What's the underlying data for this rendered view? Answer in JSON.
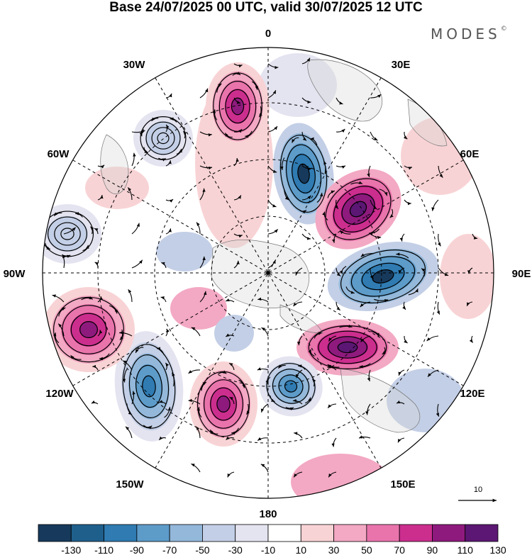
{
  "title": "Base 24/07/2025 00 UTC, valid 30/07/2025 12 UTC",
  "brand": "MODES",
  "brand_mark": "©",
  "longitude_labels": {
    "lon_0": "0",
    "lon_30e": "30E",
    "lon_60e": "60E",
    "lon_90e": "90E",
    "lon_120e": "120E",
    "lon_150e": "150E",
    "lon_180": "180",
    "lon_150w": "150W",
    "lon_120w": "120W",
    "lon_90w": "90W",
    "lon_60w": "60W",
    "lon_30w": "30W"
  },
  "reference_vector": {
    "label": "10"
  },
  "colorbar": {
    "labels": [
      "-130",
      "-110",
      "-90",
      "-70",
      "-50",
      "-30",
      "-10",
      "10",
      "30",
      "50",
      "70",
      "90",
      "110",
      "130"
    ],
    "colors": [
      "#173a5c",
      "#1f5f8c",
      "#2f7bb2",
      "#5d9bc9",
      "#93b8da",
      "#c3cfe6",
      "#e4e3f0",
      "#ffffff",
      "#f8d3d5",
      "#f3a8c3",
      "#e974ac",
      "#cc2e8e",
      "#8e1a7d",
      "#5b1773"
    ]
  },
  "anomaly_centers": [
    {
      "id": "neg-60e-inner",
      "value": -130
    },
    {
      "id": "pos-45e",
      "value": 130
    },
    {
      "id": "neg-90e",
      "value": -130
    },
    {
      "id": "pos-110e",
      "value": 130
    },
    {
      "id": "neg-160e",
      "value": -110
    },
    {
      "id": "pos-165w",
      "value": 90
    },
    {
      "id": "neg-145w",
      "value": -110
    },
    {
      "id": "pos-110w",
      "value": 90
    },
    {
      "id": "pos-20w",
      "value": 90
    },
    {
      "id": "neg-45w",
      "value": -50
    },
    {
      "id": "neg-80w",
      "value": -50
    }
  ]
}
